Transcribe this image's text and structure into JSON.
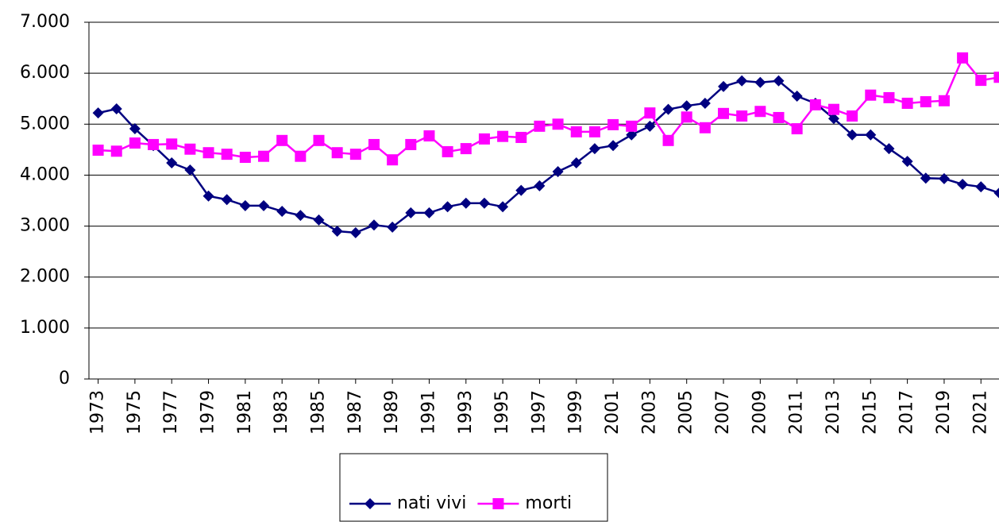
{
  "chart_data": {
    "type": "line",
    "x": [
      1973,
      1974,
      1975,
      1976,
      1977,
      1978,
      1979,
      1980,
      1981,
      1982,
      1983,
      1984,
      1985,
      1986,
      1987,
      1988,
      1989,
      1990,
      1991,
      1992,
      1993,
      1994,
      1995,
      1996,
      1997,
      1998,
      1999,
      2000,
      2001,
      2002,
      2003,
      2004,
      2005,
      2006,
      2007,
      2008,
      2009,
      2010,
      2011,
      2012,
      2013,
      2014,
      2015,
      2016,
      2017,
      2018,
      2019,
      2020,
      2021,
      2022
    ],
    "xlim": [
      1972.5,
      2022.5
    ],
    "xticks": [
      1973,
      1975,
      1977,
      1979,
      1981,
      1983,
      1985,
      1987,
      1989,
      1991,
      1993,
      1995,
      1997,
      1999,
      2001,
      2003,
      2005,
      2007,
      2009,
      2011,
      2013,
      2015,
      2017,
      2019,
      2021
    ],
    "ylim": [
      0,
      7000
    ],
    "yticks": [
      0,
      {
        "value": 1000,
        "label": "1.000"
      },
      {
        "value": 2000,
        "label": "2.000"
      },
      {
        "value": 3000,
        "label": "3.000"
      },
      {
        "value": 4000,
        "label": "4.000"
      },
      {
        "value": 5000,
        "label": "5.000"
      },
      {
        "value": 6000,
        "label": "6.000"
      },
      {
        "value": 7000,
        "label": "7.000"
      }
    ],
    "grid": true,
    "legend": "bottom",
    "series": [
      {
        "name": "nati vivi",
        "color": "#000080",
        "marker": "diamond",
        "values": [
          5220,
          5300,
          4910,
          4580,
          4240,
          4100,
          3590,
          3520,
          3400,
          3400,
          3290,
          3210,
          3120,
          2900,
          2870,
          3020,
          2980,
          3260,
          3260,
          3380,
          3450,
          3450,
          3380,
          3700,
          3790,
          4070,
          4240,
          4520,
          4580,
          4790,
          4960,
          5290,
          5360,
          5410,
          5740,
          5850,
          5820,
          5850,
          5550,
          5410,
          5110,
          4790,
          4790,
          4520,
          4270,
          3940,
          3930,
          3820,
          3770,
          3650
        ]
      },
      {
        "name": "morti",
        "color": "#ff00ff",
        "marker": "square",
        "values": [
          4490,
          4470,
          4630,
          4600,
          4610,
          4510,
          4440,
          4410,
          4350,
          4370,
          4680,
          4370,
          4680,
          4440,
          4410,
          4600,
          4300,
          4600,
          4770,
          4460,
          4520,
          4710,
          4760,
          4740,
          4960,
          5000,
          4850,
          4850,
          4990,
          4960,
          5220,
          4680,
          5140,
          4930,
          5210,
          5160,
          5250,
          5130,
          4910,
          5380,
          5290,
          5160,
          5570,
          5520,
          5410,
          5440,
          5460,
          6300,
          5860,
          5920
        ]
      }
    ]
  }
}
